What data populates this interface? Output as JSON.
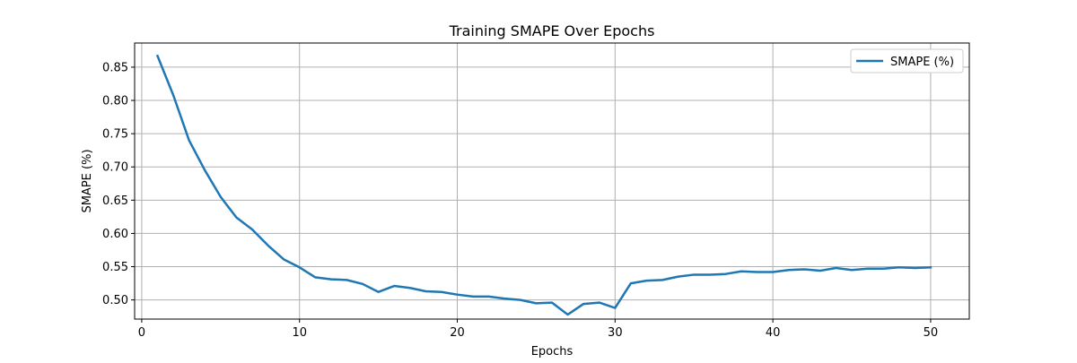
{
  "chart_data": {
    "type": "line",
    "title": "Training SMAPE Over Epochs",
    "xlabel": "Epochs",
    "ylabel": "SMAPE (%)",
    "xlim": [
      -0.45,
      52.45
    ],
    "ylim": [
      0.4712,
      0.8863
    ],
    "xticks": [
      0,
      10,
      20,
      30,
      40,
      50
    ],
    "xtick_labels": [
      "0",
      "10",
      "20",
      "30",
      "40",
      "50"
    ],
    "yticks": [
      0.5,
      0.55,
      0.6,
      0.65,
      0.7,
      0.75,
      0.8,
      0.85
    ],
    "ytick_labels": [
      "0.50",
      "0.55",
      "0.60",
      "0.65",
      "0.70",
      "0.75",
      "0.80",
      "0.85"
    ],
    "grid": true,
    "legend_position": "top-right",
    "colors": {
      "line": "#1f77b4",
      "grid": "#b0b0b0",
      "axes": "#000000"
    },
    "series": [
      {
        "name": "SMAPE (%)",
        "x": [
          1,
          2,
          3,
          4,
          5,
          6,
          7,
          8,
          9,
          10,
          11,
          12,
          13,
          14,
          15,
          16,
          17,
          18,
          19,
          20,
          21,
          22,
          23,
          24,
          25,
          26,
          27,
          28,
          29,
          30,
          31,
          32,
          33,
          34,
          35,
          36,
          37,
          38,
          39,
          40,
          41,
          42,
          43,
          44,
          45,
          46,
          47,
          48,
          49,
          50
        ],
        "values": [
          0.867,
          0.808,
          0.74,
          0.695,
          0.655,
          0.624,
          0.606,
          0.582,
          0.561,
          0.549,
          0.534,
          0.531,
          0.53,
          0.524,
          0.512,
          0.521,
          0.518,
          0.513,
          0.512,
          0.508,
          0.505,
          0.505,
          0.502,
          0.5,
          0.495,
          0.496,
          0.478,
          0.494,
          0.496,
          0.488,
          0.525,
          0.529,
          0.53,
          0.535,
          0.538,
          0.538,
          0.539,
          0.543,
          0.542,
          0.542,
          0.545,
          0.546,
          0.544,
          0.548,
          0.545,
          0.547,
          0.547,
          0.549,
          0.548,
          0.549
        ]
      }
    ]
  }
}
